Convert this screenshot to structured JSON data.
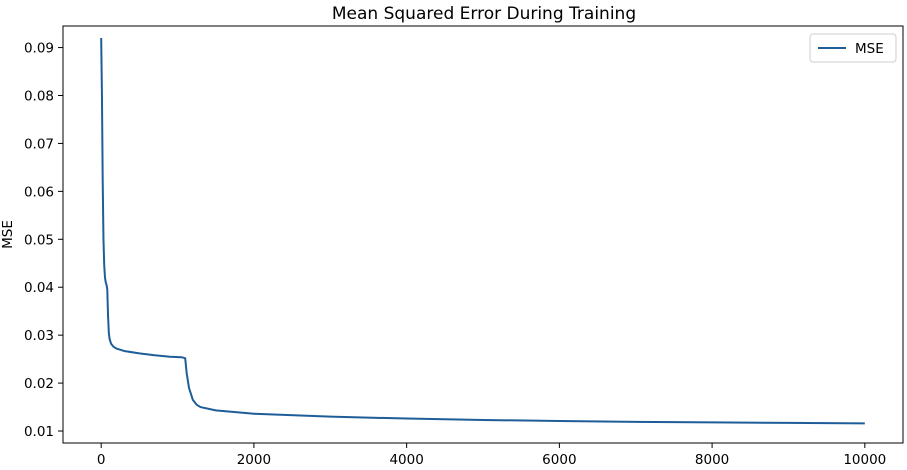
{
  "chart_data": {
    "type": "line",
    "title": "Mean Squared Error During Training",
    "xlabel": "",
    "ylabel": "MSE",
    "xlim": [
      -500,
      10500
    ],
    "ylim": [
      0.0075,
      0.0945
    ],
    "xticks": [
      0,
      2000,
      4000,
      6000,
      8000,
      10000
    ],
    "xtick_labels": [
      "0",
      "2000",
      "4000",
      "6000",
      "8000",
      "10000"
    ],
    "yticks": [
      0.01,
      0.02,
      0.03,
      0.04,
      0.05,
      0.06,
      0.07,
      0.08,
      0.09
    ],
    "ytick_labels": [
      "0.01",
      "0.02",
      "0.03",
      "0.04",
      "0.05",
      "0.06",
      "0.07",
      "0.08",
      "0.09"
    ],
    "grid": false,
    "legend_position": "top-right",
    "series": [
      {
        "name": "MSE",
        "color": "#1f5d99",
        "x": [
          0,
          10,
          20,
          30,
          40,
          50,
          60,
          70,
          80,
          90,
          100,
          110,
          130,
          160,
          200,
          300,
          500,
          700,
          900,
          1050,
          1100,
          1120,
          1150,
          1200,
          1250,
          1300,
          1500,
          2000,
          3000,
          4000,
          5000,
          6000,
          7000,
          8000,
          9000,
          10000
        ],
        "y": [
          0.092,
          0.08,
          0.062,
          0.05,
          0.0445,
          0.042,
          0.041,
          0.0405,
          0.0395,
          0.034,
          0.0305,
          0.0292,
          0.0282,
          0.0276,
          0.0272,
          0.0267,
          0.0262,
          0.0258,
          0.0255,
          0.0254,
          0.0252,
          0.022,
          0.019,
          0.0165,
          0.0155,
          0.015,
          0.0143,
          0.0136,
          0.013,
          0.0126,
          0.0123,
          0.0121,
          0.0119,
          0.0118,
          0.0117,
          0.0116
        ]
      }
    ]
  }
}
